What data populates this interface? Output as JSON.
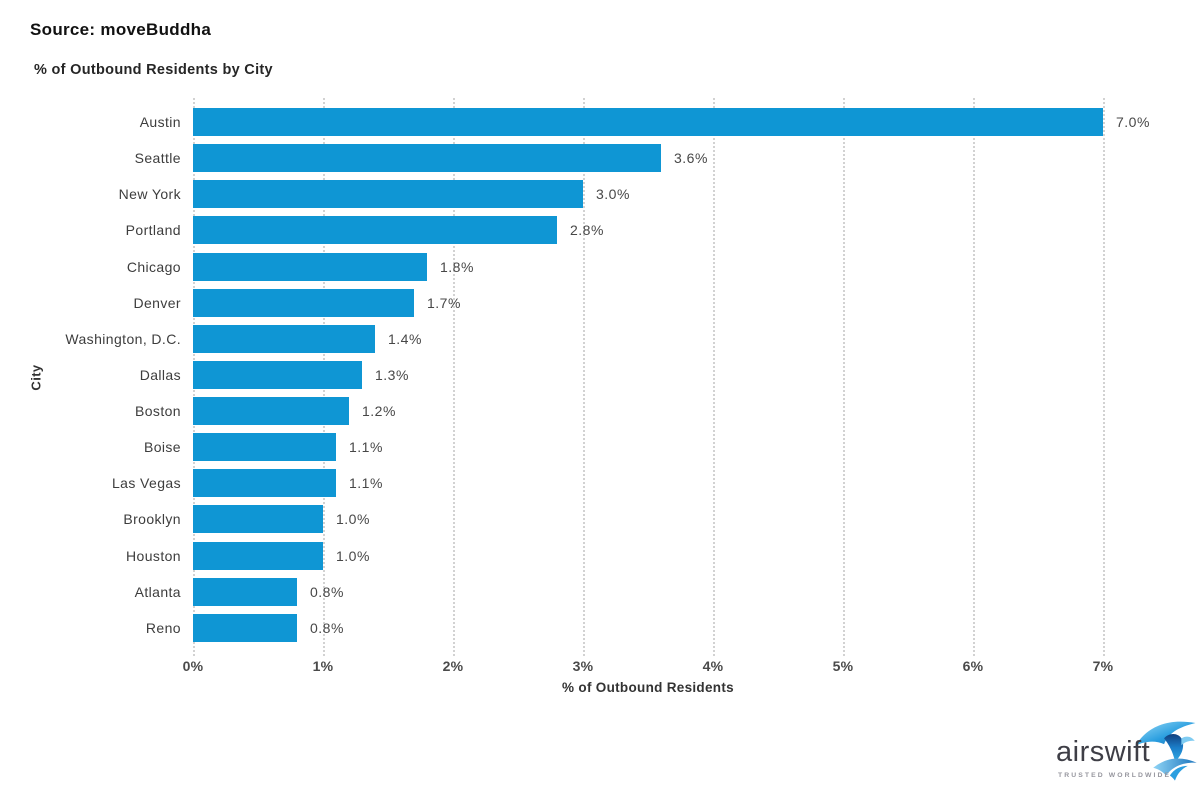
{
  "header": {
    "source_label": "Source: moveBuddha"
  },
  "chart_data": {
    "type": "bar",
    "orientation": "horizontal",
    "title": "% of Outbound Residents by City",
    "xlabel": "% of Outbound Residents",
    "ylabel": "City",
    "categories": [
      "Austin",
      "Seattle",
      "New York",
      "Portland",
      "Chicago",
      "Denver",
      "Washington, D.C.",
      "Dallas",
      "Boston",
      "Boise",
      "Las Vegas",
      "Brooklyn",
      "Houston",
      "Atlanta",
      "Reno"
    ],
    "values": [
      7.0,
      3.6,
      3.0,
      2.8,
      1.8,
      1.7,
      1.4,
      1.3,
      1.2,
      1.1,
      1.1,
      1.0,
      1.0,
      0.8,
      0.8
    ],
    "value_labels": [
      "7.0%",
      "3.6%",
      "3.0%",
      "2.8%",
      "1.8%",
      "1.7%",
      "1.4%",
      "1.3%",
      "1.2%",
      "1.1%",
      "1.1%",
      "1.0%",
      "1.0%",
      "0.8%",
      "0.8%"
    ],
    "xlim": [
      0,
      7
    ],
    "x_ticks": [
      "0%",
      "1%",
      "2%",
      "3%",
      "4%",
      "5%",
      "6%",
      "7%"
    ],
    "grid": "dotted-vertical",
    "legend": "none",
    "bar_color": "#0f96d4",
    "grid_color": "#d2d2d2"
  },
  "logo": {
    "name": "airswift",
    "tagline": "TRUSTED WORLDWIDE",
    "icon": "swift-bird-icon"
  }
}
